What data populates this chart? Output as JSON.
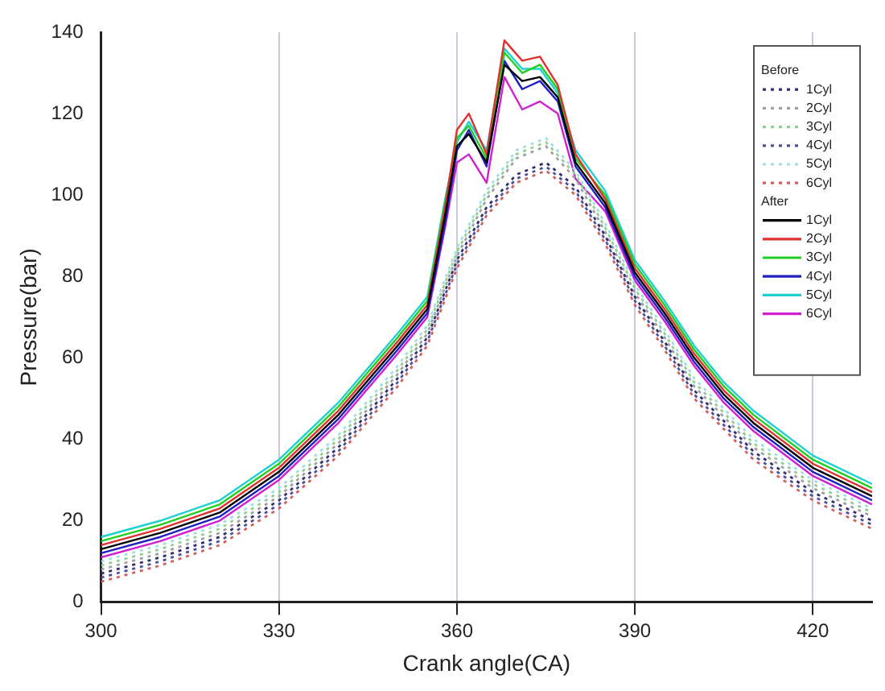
{
  "chart_data": {
    "type": "line",
    "xlabel": "Crank angle(CA)",
    "ylabel": "Pressure(bar)",
    "xlim": [
      300,
      430
    ],
    "xticks": [
      300,
      330,
      360,
      390,
      420
    ],
    "ylim": [
      0,
      140
    ],
    "yticks": [
      0,
      20,
      40,
      60,
      80,
      100,
      120,
      140
    ],
    "grid": "x",
    "legend": "top right",
    "legend_title": "Before",
    "annotations": [
      "After"
    ],
    "marker": "none",
    "series": [
      {
        "name": "1Cyl",
        "color": "#303070",
        "line_style": "dotted",
        "x": [
          300,
          310,
          320,
          330,
          340,
          350,
          355,
          360,
          365,
          370,
          375,
          380,
          385,
          390,
          395,
          400,
          410,
          420,
          430
        ],
        "values": [
          7,
          11,
          16,
          25,
          38,
          55,
          65,
          84,
          97,
          105,
          108,
          102,
          90,
          75,
          64,
          52,
          37,
          27,
          20
        ]
      },
      {
        "name": "2Cyl",
        "color": "#a0a0a0",
        "line_style": "dotted",
        "x": [
          300,
          310,
          320,
          330,
          340,
          350,
          355,
          360,
          365,
          370,
          375,
          380,
          385,
          390,
          395,
          400,
          410,
          420,
          430
        ],
        "values": [
          8,
          12,
          17,
          26,
          39,
          56,
          66,
          85,
          99,
          109,
          112,
          104,
          91,
          76,
          65,
          53,
          38,
          28,
          21
        ]
      },
      {
        "name": "3Cyl",
        "color": "#90d090",
        "line_style": "dotted",
        "x": [
          300,
          310,
          320,
          330,
          340,
          350,
          355,
          360,
          365,
          370,
          375,
          380,
          385,
          390,
          395,
          400,
          410,
          420,
          430
        ],
        "values": [
          9,
          13,
          18,
          27,
          40,
          57,
          67,
          86,
          100,
          110,
          113,
          105,
          92,
          77,
          66,
          54,
          39,
          29,
          22
        ]
      },
      {
        "name": "4Cyl",
        "color": "#5050a0",
        "line_style": "dotted",
        "x": [
          300,
          310,
          320,
          330,
          340,
          350,
          355,
          360,
          365,
          370,
          375,
          380,
          385,
          390,
          395,
          400,
          410,
          420,
          430
        ],
        "values": [
          6,
          10,
          15,
          24,
          37,
          54,
          64,
          83,
          96,
          104,
          107,
          101,
          89,
          74,
          63,
          51,
          36,
          26,
          19
        ]
      },
      {
        "name": "5Cyl",
        "color": "#a0e0e0",
        "line_style": "dotted",
        "x": [
          300,
          310,
          320,
          330,
          340,
          350,
          355,
          360,
          365,
          370,
          375,
          380,
          385,
          390,
          395,
          400,
          410,
          420,
          430
        ],
        "values": [
          10,
          14,
          19,
          28,
          41,
          58,
          68,
          87,
          101,
          111,
          114,
          106,
          93,
          78,
          67,
          55,
          40,
          30,
          23
        ]
      },
      {
        "name": "6Cyl",
        "color": "#d06060",
        "line_style": "dotted",
        "x": [
          300,
          310,
          320,
          330,
          340,
          350,
          355,
          360,
          365,
          370,
          375,
          380,
          385,
          390,
          395,
          400,
          410,
          420,
          430
        ],
        "values": [
          5,
          9,
          14,
          23,
          36,
          53,
          63,
          82,
          95,
          103,
          106,
          100,
          88,
          73,
          62,
          50,
          35,
          25,
          18
        ]
      },
      {
        "name": "1Cyl",
        "color": "#000000",
        "line_style": "solid",
        "x": [
          300,
          310,
          320,
          330,
          340,
          350,
          355,
          358,
          360,
          362,
          365,
          368,
          371,
          374,
          377,
          380,
          385,
          390,
          395,
          400,
          405,
          410,
          420,
          430
        ],
        "values": [
          13,
          17,
          22,
          32,
          46,
          63,
          72,
          95,
          112,
          115,
          108,
          132,
          128,
          129,
          124,
          108,
          98,
          81,
          71,
          60,
          51,
          44,
          33,
          26
        ]
      },
      {
        "name": "2Cyl",
        "color": "#e03030",
        "line_style": "solid",
        "x": [
          300,
          310,
          320,
          330,
          340,
          350,
          355,
          358,
          360,
          362,
          365,
          368,
          371,
          374,
          377,
          380,
          385,
          390,
          395,
          400,
          405,
          410,
          420,
          430
        ],
        "values": [
          14,
          18,
          23,
          33,
          47,
          64,
          73,
          97,
          116,
          120,
          110,
          138,
          133,
          134,
          127,
          110,
          99,
          82,
          72,
          61,
          52,
          45,
          34,
          27
        ]
      },
      {
        "name": "3Cyl",
        "color": "#20d020",
        "line_style": "solid",
        "x": [
          300,
          310,
          320,
          330,
          340,
          350,
          355,
          358,
          360,
          362,
          365,
          368,
          371,
          374,
          377,
          380,
          385,
          390,
          395,
          400,
          405,
          410,
          420,
          430
        ],
        "values": [
          15,
          19,
          24,
          34,
          48,
          65,
          74,
          98,
          114,
          117,
          109,
          135,
          130,
          132,
          126,
          109,
          100,
          83,
          73,
          62,
          53,
          46,
          35,
          28
        ]
      },
      {
        "name": "4Cyl",
        "color": "#2020c0",
        "line_style": "solid",
        "x": [
          300,
          310,
          320,
          330,
          340,
          350,
          355,
          358,
          360,
          362,
          365,
          368,
          371,
          374,
          377,
          380,
          385,
          390,
          395,
          400,
          405,
          410,
          420,
          430
        ],
        "values": [
          12,
          16,
          21,
          31,
          45,
          62,
          71,
          93,
          111,
          116,
          107,
          133,
          126,
          128,
          123,
          107,
          97,
          80,
          70,
          59,
          50,
          43,
          32,
          25
        ]
      },
      {
        "name": "5Cyl",
        "color": "#20d0d0",
        "line_style": "solid",
        "x": [
          300,
          310,
          320,
          330,
          340,
          350,
          355,
          358,
          360,
          362,
          365,
          368,
          371,
          374,
          377,
          380,
          385,
          390,
          395,
          400,
          405,
          410,
          420,
          430
        ],
        "values": [
          16,
          20,
          25,
          35,
          49,
          66,
          75,
          99,
          113,
          118,
          111,
          136,
          131,
          131,
          125,
          111,
          101,
          84,
          74,
          63,
          54,
          47,
          36,
          29
        ]
      },
      {
        "name": "6Cyl",
        "color": "#d020d0",
        "line_style": "solid",
        "x": [
          300,
          310,
          320,
          330,
          340,
          350,
          355,
          358,
          360,
          362,
          365,
          368,
          371,
          374,
          377,
          380,
          385,
          390,
          395,
          400,
          405,
          410,
          420,
          430
        ],
        "values": [
          11,
          15,
          20,
          30,
          44,
          61,
          70,
          92,
          108,
          110,
          103,
          129,
          121,
          123,
          120,
          104,
          96,
          79,
          69,
          58,
          49,
          42,
          31,
          24
        ]
      }
    ]
  }
}
